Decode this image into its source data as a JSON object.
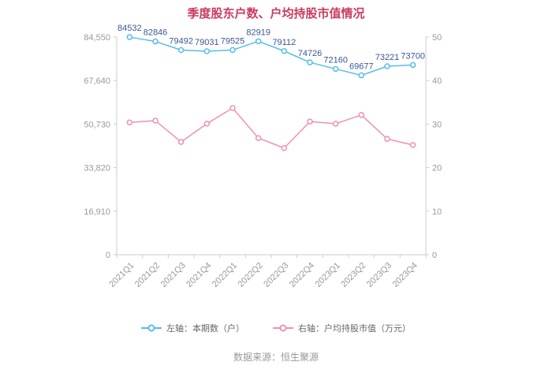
{
  "title": "季度股东户数、户均持股市值情况",
  "source": "数据来源：恒生聚源",
  "colors": {
    "title": "#cb3a60",
    "axis": "#cccccc",
    "tick_label": "#999999",
    "legend_text": "#666666",
    "source_text": "#999999",
    "series_blue": "#56bdee",
    "series_pink": "#f08fb6",
    "data_label": "#3a5795"
  },
  "legend": {
    "items": [
      {
        "label": "左轴：本期数（户）",
        "color": "#56bdee"
      },
      {
        "label": "右轴：户均持股市值（万元）",
        "color": "#f08fb6"
      }
    ]
  },
  "chart_data": {
    "type": "line",
    "title": "季度股东户数、户均持股市值情况",
    "categories": [
      "2021Q1",
      "2021Q2",
      "2021Q3",
      "2021Q4",
      "2022Q1",
      "2022Q2",
      "2022Q3",
      "2022Q4",
      "2023Q1",
      "2023Q2",
      "2023Q3",
      "2023Q4"
    ],
    "series": [
      {
        "name": "本期数（户）",
        "axis": "left",
        "color": "#56bdee",
        "label_color": "#3a5795",
        "show_labels": true,
        "values": [
          84532,
          82846,
          79492,
          79031,
          79525,
          82919,
          79112,
          74726,
          72160,
          69677,
          73221,
          73700
        ]
      },
      {
        "name": "户均持股市值（万元）",
        "axis": "right",
        "color": "#f08fb6",
        "show_labels": false,
        "values": [
          30.4,
          30.8,
          25.9,
          30.1,
          33.7,
          26.8,
          24.5,
          30.6,
          30.1,
          32.1,
          26.6,
          25.2
        ]
      }
    ],
    "left_axis": {
      "min": 0,
      "max": 84550,
      "ticks": [
        "0",
        "16,910",
        "33,820",
        "50,730",
        "67,640",
        "84,550"
      ]
    },
    "right_axis": {
      "min": 0,
      "max": 50,
      "ticks": [
        "0",
        "10",
        "20",
        "30",
        "40",
        "50"
      ]
    },
    "grid": false,
    "legend_position": "bottom"
  }
}
